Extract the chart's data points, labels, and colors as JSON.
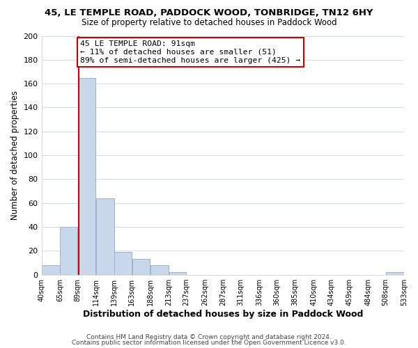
{
  "title1": "45, LE TEMPLE ROAD, PADDOCK WOOD, TONBRIDGE, TN12 6HY",
  "title2": "Size of property relative to detached houses in Paddock Wood",
  "xlabel": "Distribution of detached houses by size in Paddock Wood",
  "ylabel": "Number of detached properties",
  "bar_edges": [
    40,
    65,
    89,
    114,
    139,
    163,
    188,
    213,
    237,
    262,
    287,
    311,
    336,
    360,
    385,
    410,
    434,
    459,
    484,
    508,
    533
  ],
  "bar_heights": [
    8,
    40,
    165,
    64,
    19,
    13,
    8,
    2,
    0,
    0,
    0,
    0,
    0,
    0,
    0,
    0,
    0,
    0,
    0,
    2
  ],
  "bar_color": "#c8d8ea",
  "bar_edge_color": "#9ab4cc",
  "property_line_x": 91,
  "property_line_color": "#cc0000",
  "annotation_text": "45 LE TEMPLE ROAD: 91sqm\n← 11% of detached houses are smaller (51)\n89% of semi-detached houses are larger (425) →",
  "annotation_box_color": "#ffffff",
  "annotation_box_edge": "#cc0000",
  "tick_labels": [
    "40sqm",
    "65sqm",
    "89sqm",
    "114sqm",
    "139sqm",
    "163sqm",
    "188sqm",
    "213sqm",
    "237sqm",
    "262sqm",
    "287sqm",
    "311sqm",
    "336sqm",
    "360sqm",
    "385sqm",
    "410sqm",
    "434sqm",
    "459sqm",
    "484sqm",
    "508sqm",
    "533sqm"
  ],
  "ylim": [
    0,
    200
  ],
  "yticks": [
    0,
    20,
    40,
    60,
    80,
    100,
    120,
    140,
    160,
    180,
    200
  ],
  "footer1": "Contains HM Land Registry data © Crown copyright and database right 2024.",
  "footer2": "Contains public sector information licensed under the Open Government Licence v3.0.",
  "bg_color": "#ffffff",
  "plot_bg_color": "#ffffff",
  "grid_color": "#d4dde8"
}
